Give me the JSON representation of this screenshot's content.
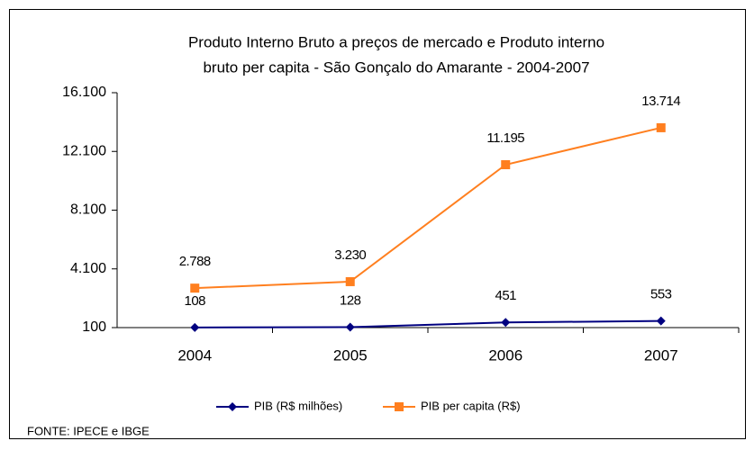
{
  "chart_data": {
    "type": "line",
    "title": [
      "Produto Interno Bruto a preços de mercado  e   Produto interno",
      "bruto per capita - São Gonçalo do Amarante - 2004-2007"
    ],
    "categories": [
      "2004",
      "2005",
      "2006",
      "2007"
    ],
    "series": [
      {
        "name": "PIB (R$ milhões)",
        "color": "#000080",
        "marker": "diamond",
        "values": [
          108,
          128,
          451,
          553
        ]
      },
      {
        "name": "PIB per capita (R$)",
        "color": "#ff7f1f",
        "marker": "square",
        "values": [
          2788,
          3230,
          11195,
          13714
        ],
        "value_labels": [
          "2.788",
          "3.230",
          "11.195",
          "13.714"
        ]
      }
    ],
    "ylim": [
      100,
      16100
    ],
    "yticks": [
      100,
      {
        "value": 4100,
        "label": "4.100"
      },
      {
        "value": 8100,
        "label": "8.100"
      },
      {
        "value": 12100,
        "label": "12.100"
      },
      {
        "value": 16100,
        "label": "16.100"
      }
    ],
    "grid": false,
    "legend": "bottom",
    "source": "FONTE: IPECE e IBGE"
  }
}
